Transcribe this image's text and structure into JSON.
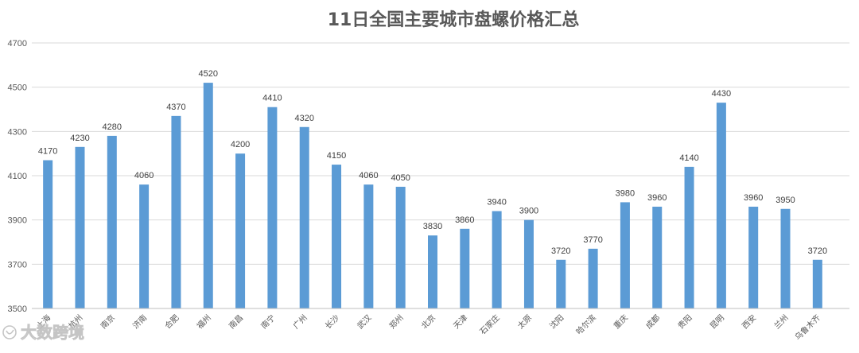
{
  "chart_data": {
    "type": "bar",
    "title": "11日全国主要城市盘螺价格汇总",
    "xlabel": "",
    "ylabel": "",
    "ylim": [
      3500,
      4700
    ],
    "yticks": [
      3500,
      3700,
      3900,
      4100,
      4300,
      4500,
      4700
    ],
    "grid": true,
    "legend": "none",
    "bar_color": "#5b9bd5",
    "categories": [
      "上海",
      "杭州",
      "南京",
      "济南",
      "合肥",
      "福州",
      "南昌",
      "南宁",
      "广州",
      "长沙",
      "武汉",
      "郑州",
      "北京",
      "天津",
      "石家庄",
      "太原",
      "沈阳",
      "哈尔滨",
      "重庆",
      "成都",
      "贵阳",
      "昆明",
      "西安",
      "兰州",
      "乌鲁木齐"
    ],
    "values": [
      4170,
      4230,
      4280,
      4060,
      4370,
      4520,
      4200,
      4410,
      4320,
      4150,
      4060,
      4050,
      3830,
      3860,
      3940,
      3900,
      3720,
      3770,
      3980,
      3960,
      4140,
      4430,
      3960,
      3950,
      3720
    ]
  },
  "watermark": {
    "text": "大数跨境",
    "icon": "brand-logo-icon"
  }
}
